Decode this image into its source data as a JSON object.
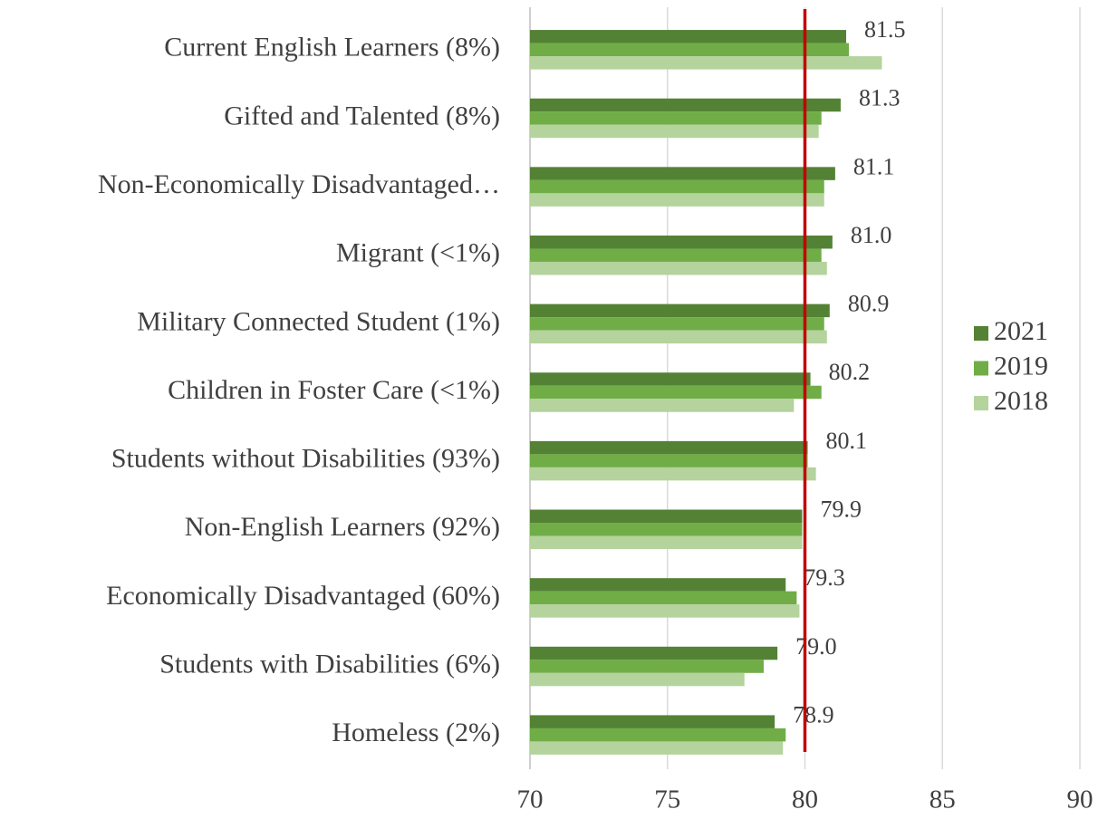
{
  "chart_data": {
    "type": "hbar",
    "categories": [
      "Current English Learners  (8%)",
      "Gifted and Talented (8%)",
      "Non-Economically Disadvantaged…",
      "Migrant (<1%)",
      "Military Connected Student (1%)",
      "Children in Foster Care (<1%)",
      "Students without Disabilities (93%)",
      "Non-English Learners (92%)",
      "Economically Disadvantaged (60%)",
      "Students with Disabilities (6%)",
      "Homeless (2%)"
    ],
    "series": [
      {
        "name": "2021",
        "color": "#548235",
        "values": [
          81.5,
          81.3,
          81.1,
          81.0,
          80.9,
          80.2,
          80.1,
          79.9,
          79.3,
          79.0,
          78.9
        ],
        "value_labels": [
          "81.5",
          "81.3",
          "81.1",
          "81.0",
          "80.9",
          "80.2",
          "80.1",
          "79.9",
          "79.3",
          "79.0",
          "78.9"
        ]
      },
      {
        "name": "2019",
        "color": "#70ad47",
        "values": [
          81.6,
          80.6,
          80.7,
          80.6,
          80.7,
          80.6,
          80.1,
          79.9,
          79.7,
          78.5,
          79.3
        ]
      },
      {
        "name": "2018",
        "color": "#b4d39d",
        "values": [
          82.8,
          80.5,
          80.7,
          80.8,
          80.8,
          79.6,
          80.4,
          79.9,
          79.8,
          77.8,
          79.2
        ]
      }
    ],
    "xlim": [
      70,
      90
    ],
    "xticks": [
      70,
      75,
      80,
      85,
      90
    ],
    "grid": true,
    "reference_line": 80,
    "reference_color": "#c00000",
    "legend": "right"
  }
}
